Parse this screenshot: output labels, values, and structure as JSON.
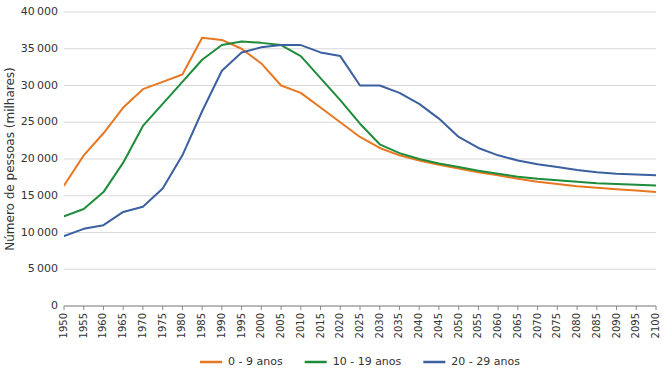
{
  "chart_data": {
    "type": "line",
    "ylabel": "Número de pessoas (milhares)",
    "x": [
      1950,
      1955,
      1960,
      1965,
      1970,
      1975,
      1980,
      1985,
      1990,
      1995,
      2000,
      2005,
      2010,
      2015,
      2020,
      2025,
      2030,
      2035,
      2040,
      2045,
      2050,
      2055,
      2060,
      2065,
      2070,
      2075,
      2080,
      2085,
      2090,
      2095,
      2100
    ],
    "series": [
      {
        "name": "0 - 9 anos",
        "color": "#E87722",
        "values": [
          16400,
          20500,
          23500,
          27000,
          29500,
          30500,
          31500,
          36500,
          36200,
          35000,
          33000,
          30000,
          29000,
          27000,
          25000,
          23000,
          21500,
          20500,
          19800,
          19200,
          18700,
          18200,
          17800,
          17300,
          16900,
          16600,
          16300,
          16100,
          15900,
          15700,
          15500
        ]
      },
      {
        "name": "10 - 19 anos",
        "color": "#1E8C3A",
        "values": [
          12200,
          13200,
          15500,
          19500,
          24500,
          27500,
          30500,
          33500,
          35500,
          36000,
          35800,
          35500,
          34000,
          31000,
          28000,
          24800,
          22000,
          20800,
          20000,
          19400,
          18900,
          18400,
          18000,
          17600,
          17300,
          17100,
          16900,
          16700,
          16600,
          16500,
          16400
        ]
      },
      {
        "name": "20 - 29 anos",
        "color": "#3C5FA0",
        "values": [
          9500,
          10500,
          11000,
          12800,
          13500,
          16000,
          20500,
          26500,
          32000,
          34500,
          35200,
          35500,
          35500,
          34500,
          34000,
          30000,
          30000,
          29000,
          27500,
          25500,
          23000,
          21500,
          20500,
          19800,
          19300,
          18900,
          18500,
          18200,
          18000,
          17900,
          17800
        ]
      }
    ],
    "xlim": [
      1950,
      2100
    ],
    "xticks": [
      1950,
      1955,
      1960,
      1965,
      1970,
      1975,
      1980,
      1985,
      1990,
      1995,
      2000,
      2005,
      2010,
      2015,
      2020,
      2025,
      2030,
      2035,
      2040,
      2045,
      2050,
      2055,
      2060,
      2065,
      2070,
      2075,
      2080,
      2085,
      2090,
      2095,
      2100
    ],
    "ylim": [
      0,
      40000
    ],
    "yticks": [
      0,
      {
        "value": 5000,
        "label": "5 000"
      },
      {
        "value": 10000,
        "label": "10 000"
      },
      {
        "value": 15000,
        "label": "15 000"
      },
      {
        "value": 20000,
        "label": "20 000"
      },
      {
        "value": 25000,
        "label": "25 000"
      },
      {
        "value": 30000,
        "label": "30 000"
      },
      {
        "value": 35000,
        "label": "35 000"
      },
      {
        "value": 40000,
        "label": "40 000"
      }
    ],
    "grid": "y",
    "legend": "bottom"
  }
}
